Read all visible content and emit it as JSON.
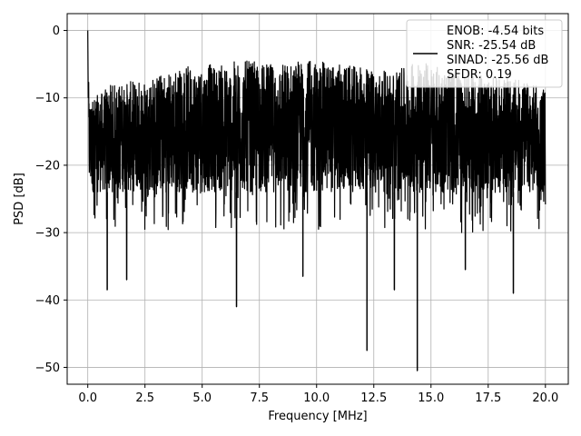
{
  "chart_data": {
    "type": "line",
    "xlabel": "Frequency [MHz]",
    "ylabel": "PSD [dB]",
    "xlim": [
      -0.9,
      21.0
    ],
    "ylim": [
      -52.5,
      2.5
    ],
    "xticks": [
      0.0,
      2.5,
      5.0,
      7.5,
      10.0,
      12.5,
      15.0,
      17.5,
      20.0
    ],
    "xtick_labels": [
      "0.0",
      "2.5",
      "5.0",
      "7.5",
      "10.0",
      "12.5",
      "15.0",
      "17.5",
      "20.0"
    ],
    "yticks": [
      0,
      -10,
      -20,
      -30,
      -40,
      -50
    ],
    "ytick_labels": [
      "0",
      "−10",
      "−20",
      "−30",
      "−40",
      "−50"
    ],
    "grid": true,
    "legend_position": "top-right",
    "legend": {
      "lines": [
        "ENOB: -4.54 bits",
        "SNR: -25.54 dB",
        "SINAD: -25.56 dB",
        "SFDR: 0.19"
      ]
    },
    "series": [
      {
        "color": "#000000",
        "description": "dense noisy PSD trace",
        "x_range": [
          0.0,
          20.0
        ],
        "x": [
          0.0,
          0.02,
          0.05,
          0.1,
          0.5,
          1.0,
          2.0,
          3.0,
          4.0,
          5.0,
          6.0,
          6.5,
          7.0,
          8.0,
          9.0,
          10.0,
          11.0,
          12.0,
          12.2,
          13.0,
          14.0,
          14.4,
          15.0,
          16.0,
          17.0,
          18.0,
          18.6,
          19.0,
          20.0
        ],
        "upper_envelope": [
          0.0,
          -4.0,
          -8.0,
          -10.0,
          -9.5,
          -8.0,
          -7.5,
          -6.5,
          -5.5,
          -5.0,
          -5.0,
          -4.5,
          -4.5,
          -5.0,
          -4.5,
          -4.5,
          -5.0,
          -5.5,
          -5.5,
          -6.0,
          -5.5,
          -4.0,
          -5.0,
          -6.0,
          -6.5,
          -7.0,
          -7.0,
          -7.5,
          -8.5
        ],
        "lower_envelope": [
          0.0,
          -12.0,
          -18.0,
          -25.0,
          -28.0,
          -29.0,
          -29.0,
          -29.0,
          -28.0,
          -27.0,
          -27.0,
          -41.0,
          -29.0,
          -28.0,
          -28.0,
          -29.0,
          -30.0,
          -29.0,
          -47.5,
          -29.0,
          -29.0,
          -50.5,
          -30.0,
          -29.0,
          -30.0,
          -30.0,
          -39.0,
          -30.0,
          -26.0
        ],
        "typical_range": [
          -24.0,
          -10.0
        ],
        "notable_dips": [
          {
            "x": 0.85,
            "y": -38.5
          },
          {
            "x": 1.7,
            "y": -37.0
          },
          {
            "x": 6.5,
            "y": -41.0
          },
          {
            "x": 9.4,
            "y": -36.5
          },
          {
            "x": 12.2,
            "y": -47.5
          },
          {
            "x": 13.4,
            "y": -38.5
          },
          {
            "x": 14.4,
            "y": -50.5
          },
          {
            "x": 16.5,
            "y": -35.5
          },
          {
            "x": 18.6,
            "y": -39.0
          }
        ]
      }
    ]
  }
}
